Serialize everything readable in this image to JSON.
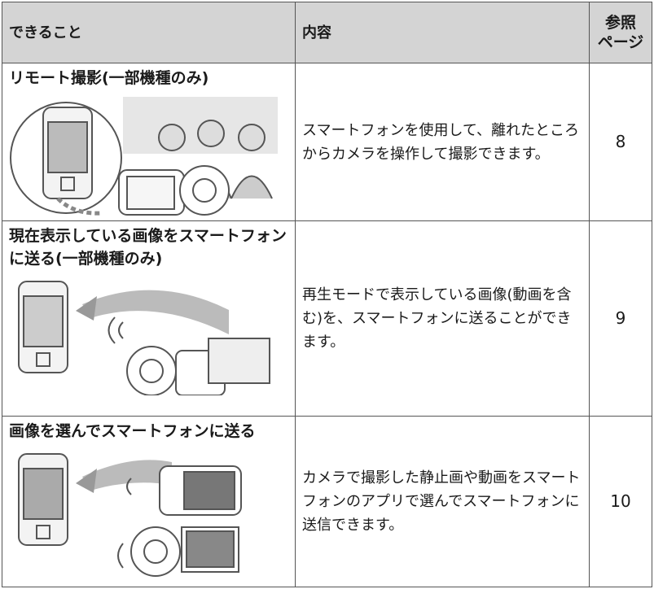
{
  "table": {
    "header": [
      "できること",
      "内容",
      {
        "lines": [
          "参照",
          "ページ"
        ]
      }
    ],
    "rows": [
      {
        "title": "リモート撮影(一部機種のみ)",
        "description": "スマートフォンを使用して、離れたところからカメラを操作して撮影できます。",
        "page": 8
      },
      {
        "title": "現在表示している画像をスマートフォンに送る(一部機種のみ)",
        "description": "再生モードで表示している画像(動画を含む)を、スマートフォンに送ることができます。",
        "page": 9
      },
      {
        "title": "画像を選んでスマートフォンに送る",
        "description": "カメラで撮影した静止画や動画をスマートフォンのアプリで選んでスマートフォンに送信できます。",
        "page": 10
      }
    ]
  }
}
